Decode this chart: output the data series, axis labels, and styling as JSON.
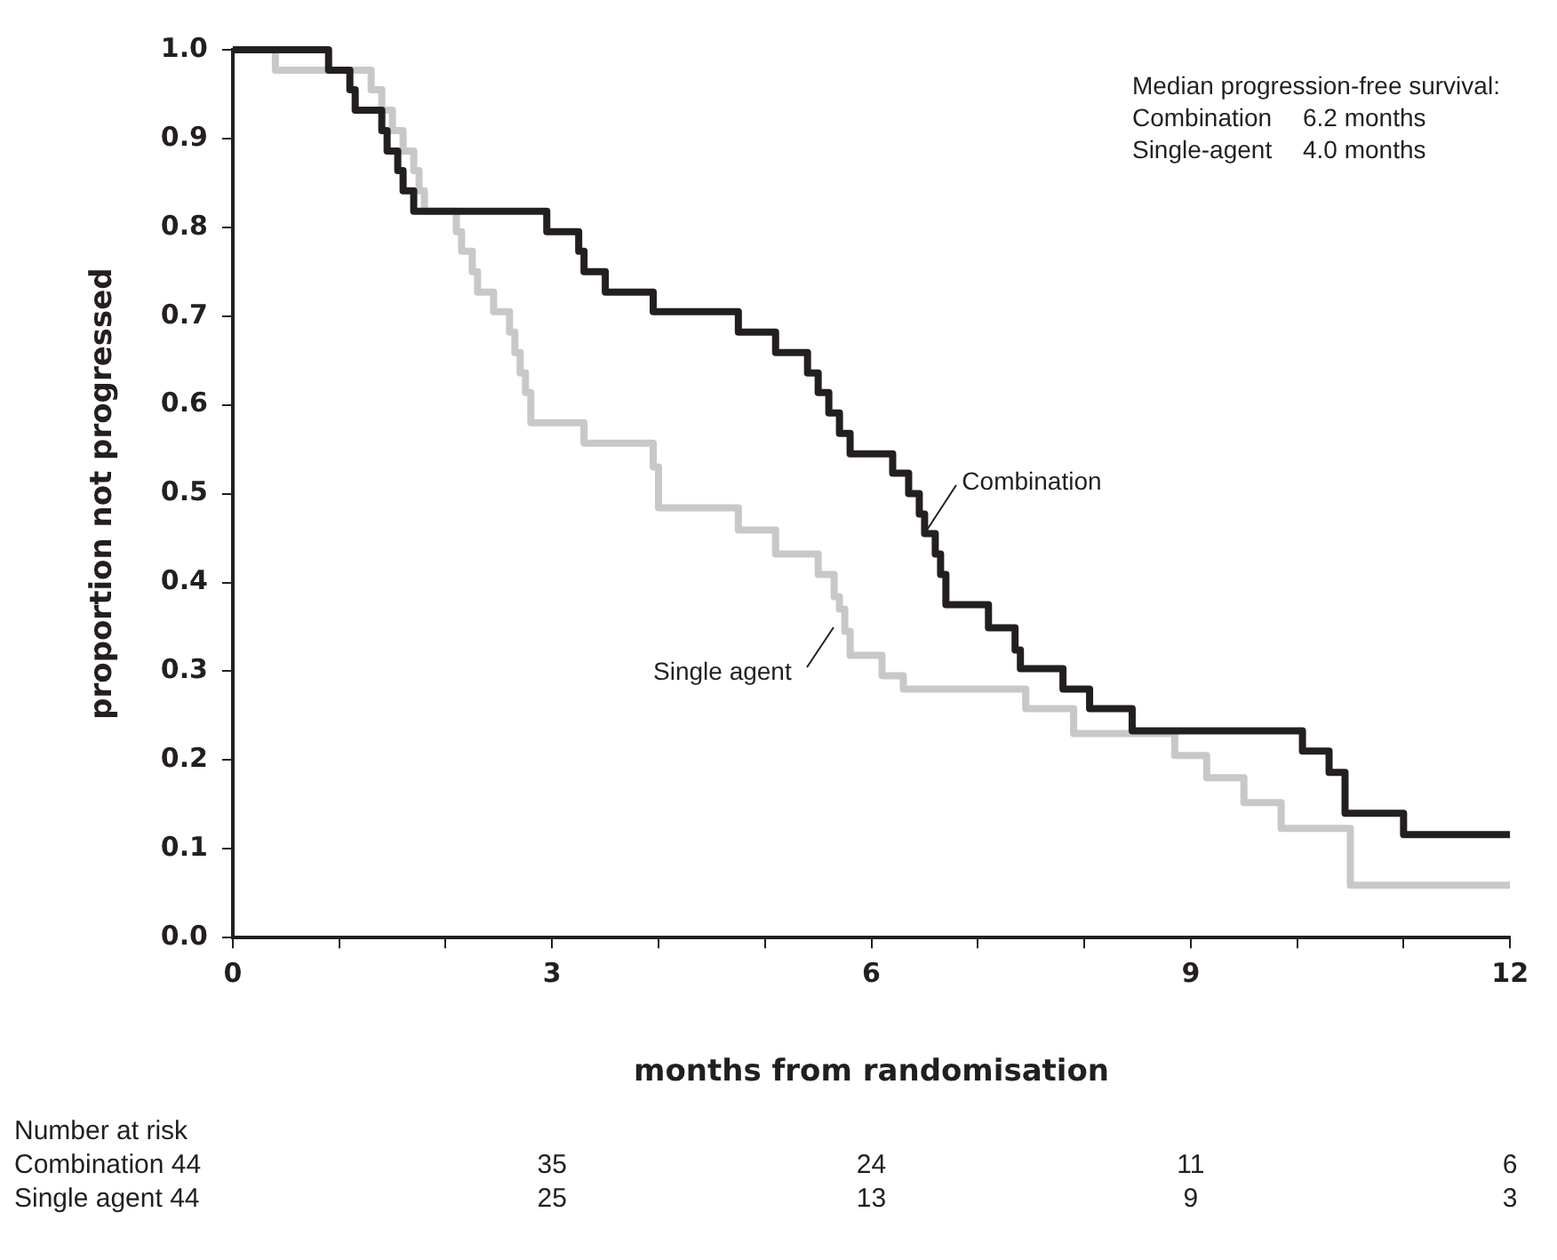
{
  "chart_data": {
    "type": "step",
    "xlabel": "months from randomisation",
    "ylabel": "proportion not progressed",
    "xlim": [
      0,
      12
    ],
    "xticks": [
      0,
      {
        "value": 1,
        "label": null
      },
      {
        "value": 2,
        "label": null
      },
      3,
      {
        "value": 4,
        "label": null
      },
      {
        "value": 5,
        "label": null
      },
      6,
      {
        "value": 7,
        "label": null
      },
      {
        "value": 8,
        "label": null
      },
      9,
      {
        "value": 10,
        "label": null
      },
      {
        "value": 11,
        "label": null
      },
      12
    ],
    "ylim": [
      0,
      1
    ],
    "yticks": [
      {
        "value": 0,
        "label": "0.0"
      },
      {
        "value": 0.1,
        "label": "0.1"
      },
      {
        "value": 0.2,
        "label": "0.2"
      },
      {
        "value": 0.3,
        "label": "0.3"
      },
      {
        "value": 0.4,
        "label": "0.4"
      },
      {
        "value": 0.5,
        "label": "0.5"
      },
      {
        "value": 0.6,
        "label": "0.6"
      },
      {
        "value": 0.7,
        "label": "0.7"
      },
      {
        "value": 0.8,
        "label": "0.8"
      },
      {
        "value": 0.9,
        "label": "0.9"
      },
      {
        "value": 1,
        "label": "1.0"
      }
    ],
    "grid": false,
    "legend": false,
    "marker": "none",
    "series": [
      {
        "name": "Combination",
        "color": "#231f20",
        "x": [
          0,
          0.9,
          1.1,
          1.15,
          1.4,
          1.45,
          1.55,
          1.6,
          1.7,
          2.95,
          3.25,
          3.3,
          3.5,
          3.95,
          4.75,
          5.1,
          5.4,
          5.5,
          5.6,
          5.7,
          5.8,
          6.2,
          6.35,
          6.45,
          6.5,
          6.6,
          6.65,
          6.7,
          7.1,
          7.35,
          7.4,
          7.8,
          8.05,
          8.45,
          10.05,
          10.3,
          10.45,
          11.0,
          12
        ],
        "values": [
          1.0,
          0.977,
          0.955,
          0.932,
          0.909,
          0.886,
          0.864,
          0.841,
          0.818,
          0.795,
          0.773,
          0.75,
          0.727,
          0.705,
          0.682,
          0.659,
          0.636,
          0.614,
          0.591,
          0.568,
          0.545,
          0.523,
          0.5,
          0.477,
          0.455,
          0.432,
          0.409,
          0.375,
          0.349,
          0.324,
          0.303,
          0.28,
          0.258,
          0.233,
          0.21,
          0.186,
          0.14,
          0.116,
          0.116
        ]
      },
      {
        "name": "Single agent",
        "color": "#c8c8c8",
        "x": [
          0,
          0.4,
          1.3,
          1.4,
          1.5,
          1.6,
          1.7,
          1.75,
          1.8,
          2.1,
          2.15,
          2.25,
          2.3,
          2.45,
          2.6,
          2.65,
          2.7,
          2.75,
          2.8,
          3.3,
          3.95,
          4.0,
          4.75,
          5.1,
          5.5,
          5.65,
          5.7,
          5.75,
          5.8,
          6.1,
          6.3,
          7.45,
          7.9,
          8.85,
          9.15,
          9.5,
          9.85,
          10.5,
          12
        ],
        "values": [
          1.0,
          0.977,
          0.955,
          0.932,
          0.909,
          0.886,
          0.864,
          0.841,
          0.818,
          0.795,
          0.773,
          0.75,
          0.727,
          0.705,
          0.682,
          0.659,
          0.636,
          0.614,
          0.58,
          0.557,
          0.53,
          0.484,
          0.459,
          0.432,
          0.409,
          0.384,
          0.37,
          0.345,
          0.318,
          0.295,
          0.28,
          0.258,
          0.23,
          0.205,
          0.18,
          0.152,
          0.123,
          0.059,
          0.059
        ]
      }
    ],
    "annotations": [
      "Median progression-free survival:",
      "Combination",
      "6.2 months",
      "Single-agent",
      "4.0 months",
      "Number at risk",
      "Combination 44",
      "35",
      "24",
      "11",
      "6",
      "Single agent 44",
      "25",
      "13",
      "9",
      "3"
    ]
  }
}
